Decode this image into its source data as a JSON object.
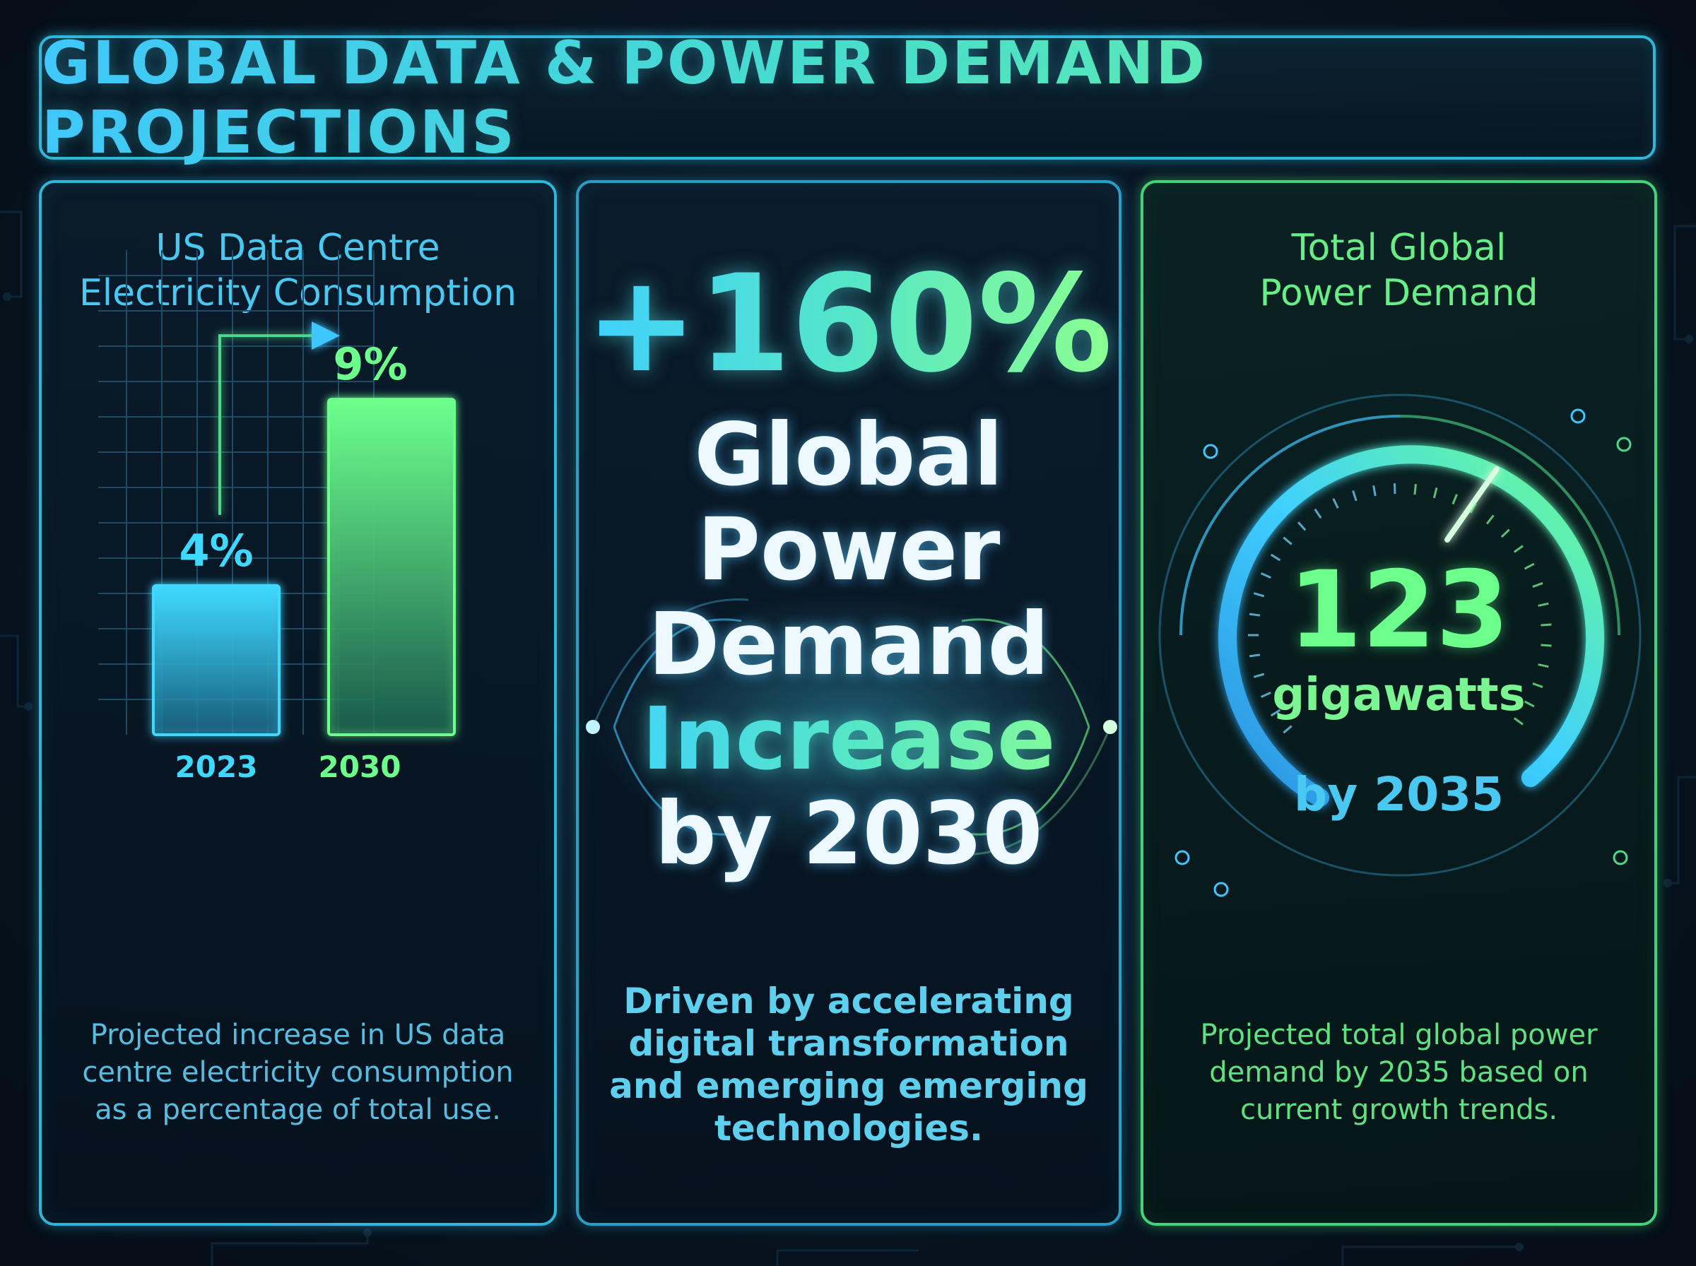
{
  "title": "GLOBAL DATA & POWER DEMAND PROJECTIONS",
  "colors": {
    "accent_blue": "#2fb6d9",
    "accent_green": "#44d37a",
    "bar_2023": "#3fd8ff",
    "bar_2030": "#6dff8c"
  },
  "left_panel": {
    "heading_line1": "US Data Centre",
    "heading_line2": "Electricity Consumption",
    "caption": "Projected increase in US data centre electricity consumption as a percentage of total use."
  },
  "chart_data": {
    "type": "bar",
    "title": "US Data Centre Electricity Consumption",
    "categories": [
      "2023",
      "2030"
    ],
    "values": [
      4,
      9
    ],
    "value_labels": [
      "4%",
      "9%"
    ],
    "unit": "%",
    "ylim": [
      0,
      13
    ],
    "grid": true
  },
  "middle_panel": {
    "headline_value": "+160%",
    "headline_lines": [
      "Global",
      "Power",
      "Demand",
      "Increase",
      "by 2030"
    ],
    "caption": "Driven by accelerating digital transformation and emerging emerging technologies."
  },
  "right_panel": {
    "heading_line1": "Total Global",
    "heading_line2": "Power Demand",
    "gauge_value": "123",
    "gauge_unit": "gigawatts",
    "gauge_year": "by 2035",
    "caption": "Projected total global power demand by 2035 based on current growth trends."
  }
}
